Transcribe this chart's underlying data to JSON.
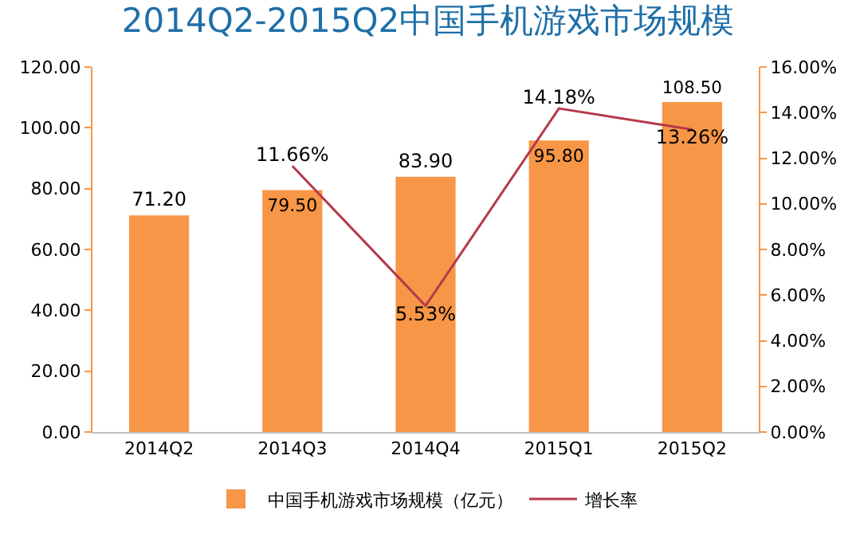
{
  "chart_data": {
    "type": "bar",
    "title": "2014Q2-2015Q2中国手机游戏市场规模",
    "categories": [
      "2014Q2",
      "2014Q3",
      "2014Q4",
      "2015Q1",
      "2015Q2"
    ],
    "series": [
      {
        "name": "中国手机游戏市场规模（亿元）",
        "color": "#f79646",
        "values": [
          71.2,
          79.5,
          83.9,
          95.8,
          108.5
        ],
        "value_labels": [
          "71.20",
          "79.50",
          "83.90",
          "95.80",
          "108.50"
        ]
      },
      {
        "name": "增长率",
        "type": "line",
        "axis": "y2",
        "color": "#b5394a",
        "values": [
          null,
          11.66,
          5.53,
          14.18,
          13.26
        ],
        "value_labels": [
          null,
          "11.66%",
          "5.53%",
          "14.18%",
          "13.26%"
        ]
      }
    ],
    "ylim": [
      0,
      120
    ],
    "yticks": [
      {
        "value": 0,
        "label": "0.00"
      },
      {
        "value": 20,
        "label": "20.00"
      },
      {
        "value": 40,
        "label": "40.00"
      },
      {
        "value": 60,
        "label": "60.00"
      },
      {
        "value": 80,
        "label": "80.00"
      },
      {
        "value": 100,
        "label": "100.00"
      },
      {
        "value": 120,
        "label": "120.00"
      }
    ],
    "y2lim": [
      0,
      16
    ],
    "y2ticks": [
      {
        "value": 0,
        "label": "0.00%"
      },
      {
        "value": 2,
        "label": "2.00%"
      },
      {
        "value": 4,
        "label": "4.00%"
      },
      {
        "value": 6,
        "label": "6.00%"
      },
      {
        "value": 8,
        "label": "8.00%"
      },
      {
        "value": 10,
        "label": "10.00%"
      },
      {
        "value": 12,
        "label": "12.00%"
      },
      {
        "value": 14,
        "label": "14.00%"
      },
      {
        "value": 16,
        "label": "16.00%"
      }
    ],
    "grid": false,
    "legend": "bottom",
    "marker": "none",
    "line_style": "solid"
  }
}
